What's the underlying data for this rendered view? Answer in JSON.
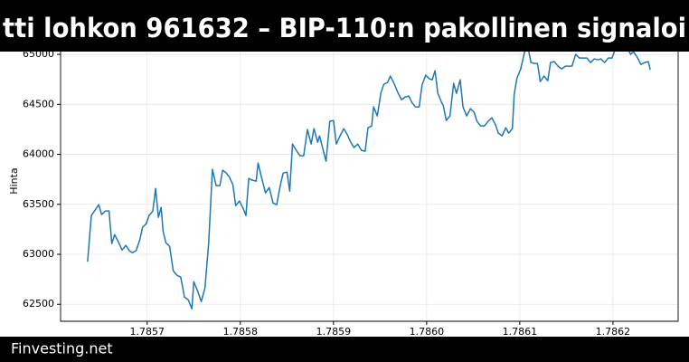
{
  "chart_data": {
    "type": "line",
    "title": "tti lohkon 961632 – BIP-110:n pakollinen signaloi",
    "ylabel": "Hinta",
    "footer": "Finvesting.net",
    "color": "#1f77b4",
    "grid": true,
    "xlim": [
      1.785607,
      1.78627
    ],
    "ylim": [
      62330,
      65200
    ],
    "xticks": [
      1.7857,
      1.7858,
      1.7859,
      {
        "value": 1.786,
        "label": "1.7860"
      },
      1.7861,
      1.7862
    ],
    "yticks": [
      62500,
      63000,
      63500,
      64000,
      64500,
      65000
    ],
    "x": [
      1.785636,
      1.78564,
      1.785644,
      1.785648,
      1.785651,
      1.785655,
      1.785659,
      1.785662,
      1.785665,
      1.785669,
      1.785673,
      1.785677,
      1.785681,
      1.785684,
      1.785688,
      1.785692,
      1.785695,
      1.785699,
      1.785702,
      1.785706,
      1.785709,
      1.785712,
      1.785715,
      1.785717,
      1.78572,
      1.785724,
      1.785728,
      1.785732,
      1.785736,
      1.78574,
      1.785744,
      1.785748,
      1.78575,
      1.785754,
      1.785758,
      1.785762,
      1.785766,
      1.78577,
      1.785774,
      1.785778,
      1.785781,
      1.785784,
      1.785788,
      1.785792,
      1.785795,
      1.785799,
      1.785803,
      1.785806,
      1.785809,
      1.785813,
      1.785817,
      1.785819,
      1.785823,
      1.785827,
      1.785831,
      1.785835,
      1.785839,
      1.785843,
      1.785846,
      1.78585,
      1.785853,
      1.785856,
      1.78586,
      1.785864,
      1.785868,
      1.785872,
      1.785876,
      1.785879,
      1.785883,
      1.785885,
      1.785889,
      1.785892,
      1.785896,
      1.7859,
      1.785903,
      1.785907,
      1.785911,
      1.785915,
      1.785918,
      1.785922,
      1.785926,
      1.78593,
      1.785934,
      1.785937,
      1.785941,
      1.785943,
      1.785947,
      1.785951,
      1.785954,
      1.785958,
      1.785961,
      1.785965,
      1.785969,
      1.785973,
      1.785977,
      1.785981,
      1.785984,
      1.785988,
      1.785992,
      1.785995,
      1.785999,
      1.786003,
      1.786006,
      1.786009,
      1.786012,
      1.786016,
      1.786018,
      1.786021,
      1.786025,
      1.786029,
      1.786032,
      1.786036,
      1.786039,
      1.786043,
      1.786047,
      1.786051,
      1.786054,
      1.786058,
      1.786062,
      1.786066,
      1.78607,
      1.786074,
      1.786077,
      1.786081,
      1.786085,
      1.786088,
      1.786092,
      1.786094,
      1.786097,
      1.786101,
      1.786105,
      1.786108,
      1.786112,
      1.786116,
      1.786119,
      1.786122,
      1.786126,
      1.78613,
      1.786133,
      1.786137,
      1.786141,
      1.786145,
      1.786149,
      1.786152,
      1.786156,
      1.78616,
      1.786164,
      1.786168,
      1.786172,
      1.786176,
      1.78618,
      1.786184,
      1.786187,
      1.786191,
      1.786195,
      1.786199,
      1.786203,
      1.786207,
      1.786211,
      1.786215,
      1.786219,
      1.786222,
      1.786226,
      1.78623,
      1.786234,
      1.786238,
      1.78624
    ],
    "values": [
      62926,
      63388,
      63442,
      63496,
      63397,
      63433,
      63433,
      63107,
      63197,
      63125,
      63043,
      63089,
      63034,
      63016,
      63034,
      63143,
      63270,
      63306,
      63388,
      63433,
      63659,
      63370,
      63469,
      63234,
      63116,
      63080,
      62835,
      62790,
      62772,
      62572,
      62545,
      62455,
      62726,
      62636,
      62527,
      62663,
      63116,
      63850,
      63687,
      63687,
      63841,
      63822,
      63777,
      63696,
      63487,
      63533,
      63460,
      63388,
      63759,
      63741,
      63732,
      63913,
      63759,
      63614,
      63668,
      63514,
      63496,
      63696,
      63813,
      63822,
      63632,
      64103,
      64040,
      63986,
      63986,
      64248,
      64103,
      64257,
      64121,
      64185,
      64040,
      63931,
      64330,
      64339,
      64103,
      64185,
      64257,
      64194,
      64130,
      64067,
      64103,
      64040,
      64031,
      64266,
      64284,
      64475,
      64384,
      64620,
      64701,
      64719,
      64783,
      64710,
      64620,
      64547,
      64574,
      64583,
      64520,
      64475,
      64475,
      64692,
      64792,
      64755,
      64746,
      64837,
      64610,
      64520,
      64484,
      64339,
      64384,
      64710,
      64610,
      64746,
      64475,
      64384,
      64457,
      64420,
      64330,
      64284,
      64284,
      64330,
      64366,
      64294,
      64212,
      64185,
      64266,
      64212,
      64257,
      64601,
      64764,
      64855,
      65018,
      65109,
      64918,
      64909,
      64909,
      64728,
      64783,
      64737,
      64918,
      64928,
      64882,
      64855,
      64882,
      64882,
      64882,
      65000,
      64964,
      64964,
      64964,
      64918,
      64955,
      64946,
      64955,
      64918,
      64964,
      64964,
      65063,
      65091,
      65127,
      65072,
      65000,
      65027,
      64973,
      64900,
      64918,
      64928,
      64846
    ]
  }
}
